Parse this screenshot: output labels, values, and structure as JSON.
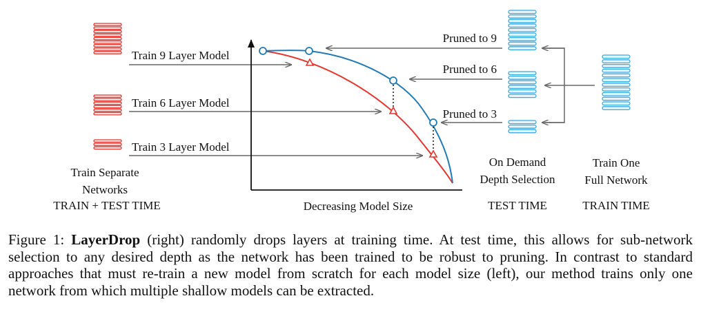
{
  "figure": {
    "left_labels": [
      "Train 9 Layer Model",
      "Train 6 Layer Model",
      "Train 3 Layer Model"
    ],
    "left_caption": [
      "Train Separate",
      "Networks",
      "TRAIN + TEST TIME"
    ],
    "x_axis_label": "Decreasing Model Size",
    "pruned_labels": [
      "Pruned to 9",
      "Pruned to 6",
      "Pruned to 3"
    ],
    "on_demand": [
      "On Demand",
      "Depth Selection"
    ],
    "test_time": "TEST TIME",
    "train_one": [
      "Train One",
      "Full Network"
    ],
    "train_time": "TRAIN TIME",
    "colors": {
      "separate_models": "#e8342c",
      "layerdrop_pruned": "#3aa8e0",
      "full_network": "#3aa8e0",
      "blue_curve": "#1f7ab8",
      "red_curve": "#e8342c",
      "arrows": "#666666"
    },
    "stacks": {
      "left_red_layers": [
        9,
        6,
        3
      ],
      "pruned_layers": [
        9,
        6,
        3
      ],
      "full_network_layers": 12
    }
  },
  "caption": {
    "prefix": "Figure 1: ",
    "bold": "LayerDrop",
    "text": " (right) randomly drops layers at training time. At test time, this allows for sub-network selection to any desired depth as the network has been trained to be robust to pruning. In contrast to standard approaches that must re-train a new model from scratch for each model size (left), our method trains only one network from which multiple shallow models can be extracted."
  }
}
